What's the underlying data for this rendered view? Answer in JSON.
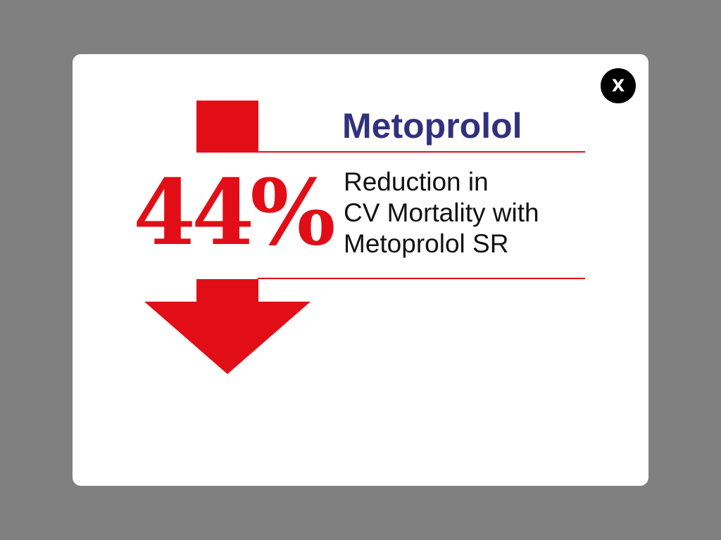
{
  "modal": {
    "close_label": "X",
    "title": "Metoprolol",
    "stat_value": "44%",
    "description_lines": [
      "Reduction in",
      "CV Mortality with",
      "Metoprolol SR"
    ]
  },
  "icons": {
    "arrow": "down-arrow-icon",
    "close": "close-icon"
  },
  "colors": {
    "backdrop": "#808080",
    "modal_bg": "#ffffff",
    "accent_red": "#e20e17",
    "title_purple": "#31317e",
    "close_bg": "#000000",
    "text": "#111111"
  }
}
